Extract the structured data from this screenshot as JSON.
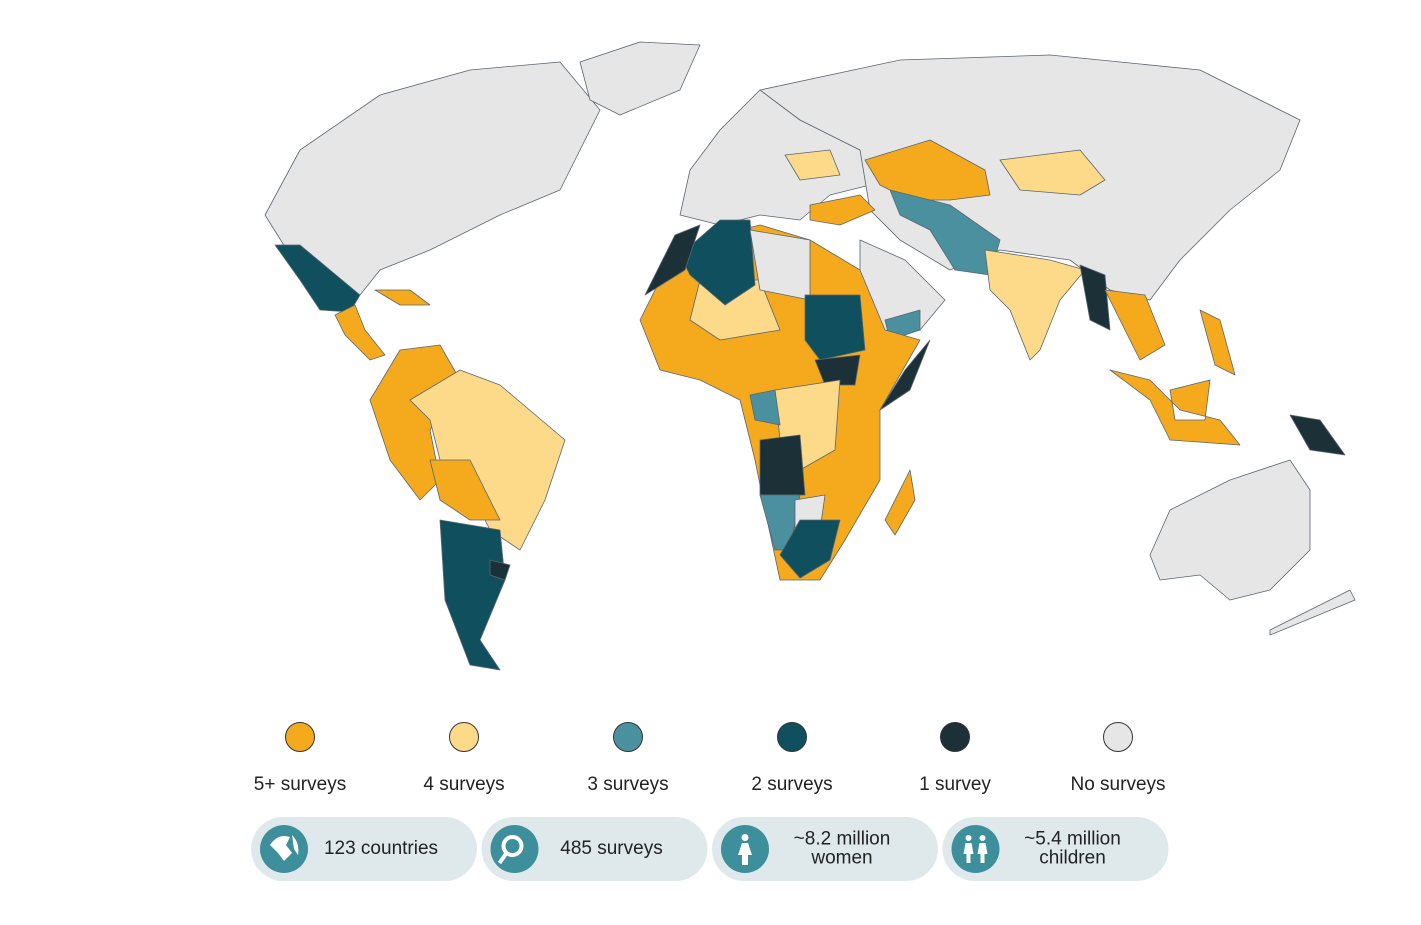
{
  "legend": [
    {
      "label": "5+ surveys",
      "color": "#f5aa1e"
    },
    {
      "label": "4 surveys",
      "color": "#fdd98a"
    },
    {
      "label": "3 surveys",
      "color": "#4a909e"
    },
    {
      "label": "2 surveys",
      "color": "#10505e"
    },
    {
      "label": "1 survey",
      "color": "#1c3038"
    },
    {
      "label": "No surveys",
      "color": "#e6e6e6"
    }
  ],
  "stats": [
    {
      "lines": [
        "123 countries"
      ]
    },
    {
      "lines": [
        "485 surveys"
      ]
    },
    {
      "lines": [
        "~8.2 million",
        "women"
      ]
    },
    {
      "lines": [
        "~5.4 million",
        "children"
      ]
    }
  ]
}
